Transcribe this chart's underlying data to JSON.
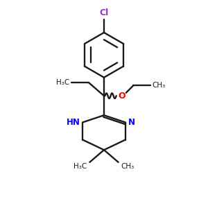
{
  "background_color": "#ffffff",
  "bond_color": "#1a1a1a",
  "cl_color": "#9b30d0",
  "n_color": "#0000ff",
  "o_color": "#ff0000",
  "figsize": [
    3.0,
    3.0
  ],
  "dpi": 100,
  "xlim": [
    0,
    10
  ],
  "ylim": [
    0,
    10
  ]
}
